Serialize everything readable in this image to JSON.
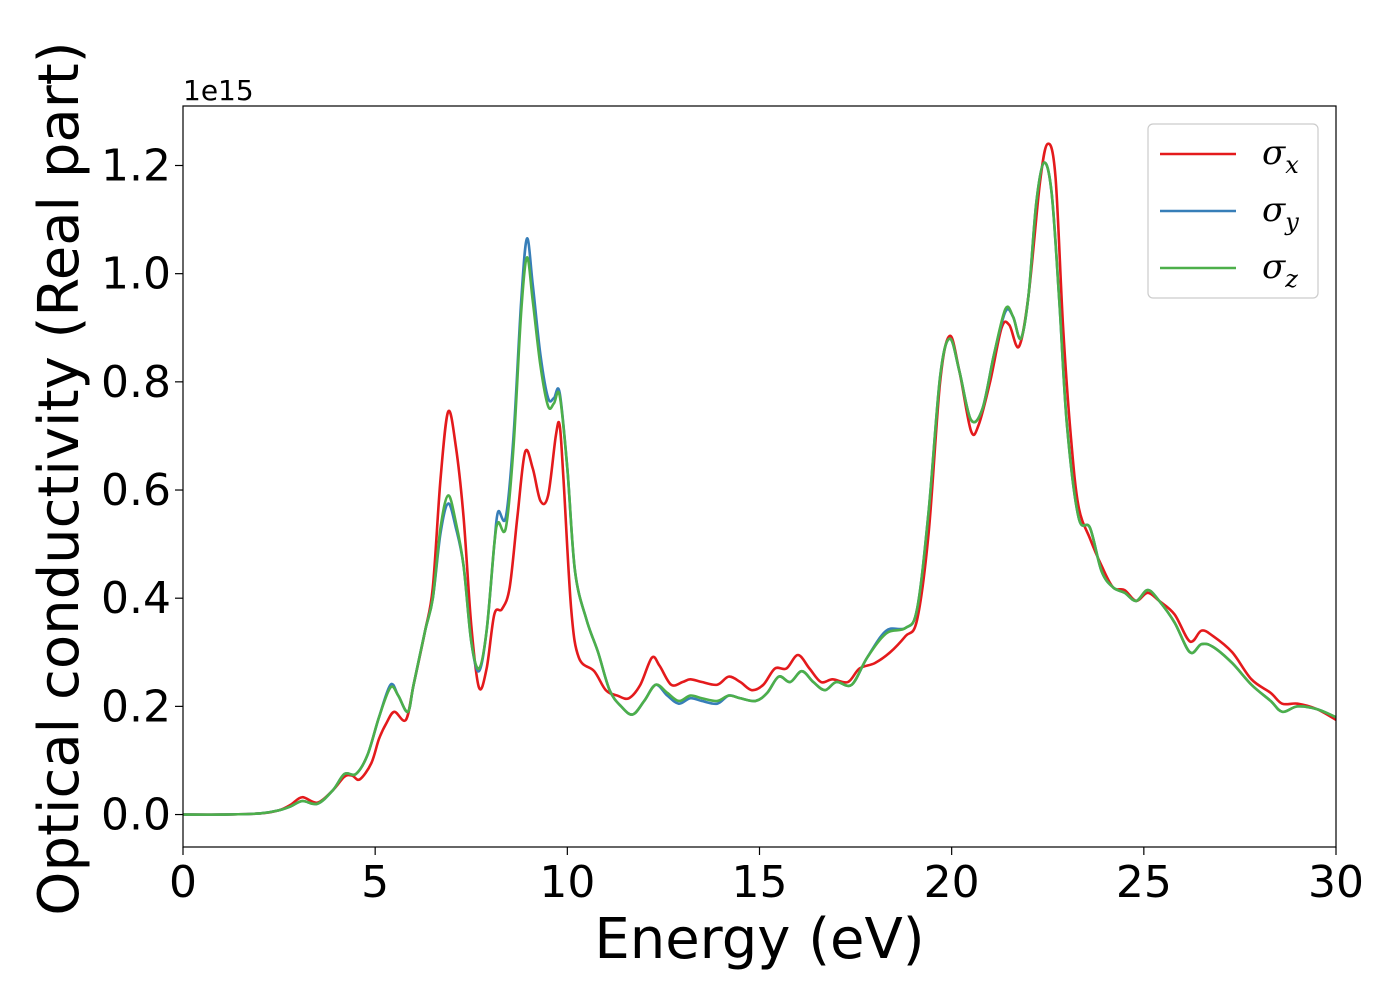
{
  "chart_data": {
    "type": "line",
    "title": "",
    "xlabel": "Energy (eV)",
    "ylabel": "Optical conductivity (Real part)",
    "offset_text": "1e15",
    "xlim": [
      0,
      30
    ],
    "ylim": [
      -0.06,
      1.31
    ],
    "x_ticks": [
      0,
      5,
      10,
      15,
      20,
      25,
      30
    ],
    "x_tick_labels": [
      "0",
      "5",
      "10",
      "15",
      "20",
      "25",
      "30"
    ],
    "y_ticks": [
      0.0,
      0.2,
      0.4,
      0.6,
      0.8,
      1.0,
      1.2
    ],
    "y_tick_labels": [
      "0.0",
      "0.2",
      "0.4",
      "0.6",
      "0.8",
      "1.0",
      "1.2"
    ],
    "grid": false,
    "legend_position": "top-right",
    "series": [
      {
        "name": "σx",
        "legend_symbol": "σ",
        "legend_sub": "x",
        "color": "#e41a1c",
        "points": [
          [
            0,
            0
          ],
          [
            1,
            0
          ],
          [
            2,
            0.002
          ],
          [
            2.5,
            0.008
          ],
          [
            2.8,
            0.018
          ],
          [
            3.1,
            0.032
          ],
          [
            3.5,
            0.022
          ],
          [
            3.9,
            0.045
          ],
          [
            4.2,
            0.07
          ],
          [
            4.4,
            0.072
          ],
          [
            4.6,
            0.065
          ],
          [
            4.9,
            0.095
          ],
          [
            5.1,
            0.14
          ],
          [
            5.3,
            0.17
          ],
          [
            5.5,
            0.19
          ],
          [
            5.8,
            0.175
          ],
          [
            6.0,
            0.24
          ],
          [
            6.3,
            0.34
          ],
          [
            6.5,
            0.42
          ],
          [
            6.7,
            0.62
          ],
          [
            6.9,
            0.745
          ],
          [
            7.1,
            0.68
          ],
          [
            7.3,
            0.55
          ],
          [
            7.5,
            0.35
          ],
          [
            7.7,
            0.235
          ],
          [
            7.9,
            0.27
          ],
          [
            8.1,
            0.37
          ],
          [
            8.3,
            0.38
          ],
          [
            8.5,
            0.42
          ],
          [
            8.7,
            0.55
          ],
          [
            8.9,
            0.67
          ],
          [
            9.1,
            0.64
          ],
          [
            9.3,
            0.58
          ],
          [
            9.5,
            0.59
          ],
          [
            9.7,
            0.7
          ],
          [
            9.8,
            0.72
          ],
          [
            9.9,
            0.62
          ],
          [
            10.1,
            0.38
          ],
          [
            10.3,
            0.29
          ],
          [
            10.7,
            0.265
          ],
          [
            11.0,
            0.23
          ],
          [
            11.3,
            0.22
          ],
          [
            11.6,
            0.215
          ],
          [
            11.9,
            0.24
          ],
          [
            12.2,
            0.29
          ],
          [
            12.4,
            0.275
          ],
          [
            12.7,
            0.24
          ],
          [
            13.0,
            0.245
          ],
          [
            13.2,
            0.25
          ],
          [
            13.5,
            0.245
          ],
          [
            13.9,
            0.24
          ],
          [
            14.2,
            0.255
          ],
          [
            14.5,
            0.245
          ],
          [
            14.8,
            0.23
          ],
          [
            15.1,
            0.24
          ],
          [
            15.4,
            0.27
          ],
          [
            15.7,
            0.27
          ],
          [
            16.0,
            0.295
          ],
          [
            16.3,
            0.27
          ],
          [
            16.6,
            0.245
          ],
          [
            16.9,
            0.25
          ],
          [
            17.3,
            0.245
          ],
          [
            17.6,
            0.27
          ],
          [
            18.0,
            0.28
          ],
          [
            18.4,
            0.3
          ],
          [
            18.8,
            0.33
          ],
          [
            19.1,
            0.36
          ],
          [
            19.4,
            0.52
          ],
          [
            19.7,
            0.8
          ],
          [
            19.95,
            0.885
          ],
          [
            20.2,
            0.82
          ],
          [
            20.5,
            0.71
          ],
          [
            20.7,
            0.72
          ],
          [
            21.0,
            0.8
          ],
          [
            21.3,
            0.9
          ],
          [
            21.5,
            0.905
          ],
          [
            21.75,
            0.865
          ],
          [
            22.0,
            0.96
          ],
          [
            22.3,
            1.17
          ],
          [
            22.5,
            1.24
          ],
          [
            22.7,
            1.18
          ],
          [
            22.9,
            0.9
          ],
          [
            23.1,
            0.7
          ],
          [
            23.3,
            0.57
          ],
          [
            23.6,
            0.51
          ],
          [
            23.9,
            0.46
          ],
          [
            24.2,
            0.42
          ],
          [
            24.5,
            0.415
          ],
          [
            24.8,
            0.395
          ],
          [
            25.1,
            0.41
          ],
          [
            25.4,
            0.395
          ],
          [
            25.8,
            0.37
          ],
          [
            26.2,
            0.32
          ],
          [
            26.5,
            0.34
          ],
          [
            26.8,
            0.33
          ],
          [
            27.3,
            0.3
          ],
          [
            27.8,
            0.25
          ],
          [
            28.3,
            0.225
          ],
          [
            28.6,
            0.205
          ],
          [
            29.0,
            0.205
          ],
          [
            29.5,
            0.195
          ],
          [
            30.0,
            0.175
          ]
        ]
      },
      {
        "name": "σy",
        "legend_symbol": "σ",
        "legend_sub": "y",
        "color": "#377eb8",
        "points": [
          [
            0,
            0
          ],
          [
            1,
            0
          ],
          [
            2,
            0.002
          ],
          [
            2.5,
            0.008
          ],
          [
            2.8,
            0.015
          ],
          [
            3.1,
            0.025
          ],
          [
            3.5,
            0.02
          ],
          [
            3.9,
            0.045
          ],
          [
            4.2,
            0.075
          ],
          [
            4.5,
            0.075
          ],
          [
            4.8,
            0.11
          ],
          [
            5.1,
            0.18
          ],
          [
            5.4,
            0.24
          ],
          [
            5.6,
            0.22
          ],
          [
            5.85,
            0.19
          ],
          [
            6.0,
            0.24
          ],
          [
            6.3,
            0.34
          ],
          [
            6.5,
            0.4
          ],
          [
            6.7,
            0.52
          ],
          [
            6.9,
            0.575
          ],
          [
            7.1,
            0.53
          ],
          [
            7.3,
            0.46
          ],
          [
            7.5,
            0.32
          ],
          [
            7.7,
            0.265
          ],
          [
            7.9,
            0.34
          ],
          [
            8.1,
            0.5
          ],
          [
            8.2,
            0.56
          ],
          [
            8.4,
            0.55
          ],
          [
            8.6,
            0.7
          ],
          [
            8.8,
            0.95
          ],
          [
            8.95,
            1.065
          ],
          [
            9.1,
            0.98
          ],
          [
            9.3,
            0.85
          ],
          [
            9.5,
            0.77
          ],
          [
            9.65,
            0.77
          ],
          [
            9.8,
            0.78
          ],
          [
            10.0,
            0.64
          ],
          [
            10.2,
            0.45
          ],
          [
            10.5,
            0.36
          ],
          [
            10.8,
            0.3
          ],
          [
            11.1,
            0.23
          ],
          [
            11.4,
            0.2
          ],
          [
            11.7,
            0.185
          ],
          [
            12.0,
            0.21
          ],
          [
            12.3,
            0.24
          ],
          [
            12.6,
            0.22
          ],
          [
            12.9,
            0.205
          ],
          [
            13.2,
            0.215
          ],
          [
            13.5,
            0.21
          ],
          [
            13.9,
            0.205
          ],
          [
            14.2,
            0.22
          ],
          [
            14.5,
            0.215
          ],
          [
            14.9,
            0.21
          ],
          [
            15.2,
            0.225
          ],
          [
            15.5,
            0.255
          ],
          [
            15.8,
            0.245
          ],
          [
            16.1,
            0.265
          ],
          [
            16.4,
            0.245
          ],
          [
            16.7,
            0.23
          ],
          [
            17.0,
            0.245
          ],
          [
            17.4,
            0.24
          ],
          [
            17.8,
            0.29
          ],
          [
            18.3,
            0.34
          ],
          [
            18.8,
            0.345
          ],
          [
            19.1,
            0.38
          ],
          [
            19.4,
            0.56
          ],
          [
            19.7,
            0.81
          ],
          [
            19.95,
            0.88
          ],
          [
            20.2,
            0.82
          ],
          [
            20.5,
            0.73
          ],
          [
            20.8,
            0.75
          ],
          [
            21.1,
            0.85
          ],
          [
            21.4,
            0.93
          ],
          [
            21.6,
            0.92
          ],
          [
            21.8,
            0.88
          ],
          [
            22.0,
            0.96
          ],
          [
            22.2,
            1.13
          ],
          [
            22.4,
            1.205
          ],
          [
            22.6,
            1.15
          ],
          [
            22.8,
            0.95
          ],
          [
            23.0,
            0.72
          ],
          [
            23.3,
            0.55
          ],
          [
            23.6,
            0.53
          ],
          [
            23.9,
            0.45
          ],
          [
            24.2,
            0.42
          ],
          [
            24.5,
            0.41
          ],
          [
            24.8,
            0.395
          ],
          [
            25.1,
            0.415
          ],
          [
            25.4,
            0.395
          ],
          [
            25.8,
            0.355
          ],
          [
            26.2,
            0.3
          ],
          [
            26.5,
            0.315
          ],
          [
            26.8,
            0.31
          ],
          [
            27.3,
            0.28
          ],
          [
            27.8,
            0.24
          ],
          [
            28.3,
            0.21
          ],
          [
            28.6,
            0.19
          ],
          [
            29.0,
            0.2
          ],
          [
            29.5,
            0.195
          ],
          [
            30.0,
            0.18
          ]
        ]
      },
      {
        "name": "σz",
        "legend_symbol": "σ",
        "legend_sub": "z",
        "color": "#4daf4a",
        "points": [
          [
            0,
            0
          ],
          [
            1,
            0
          ],
          [
            2,
            0.002
          ],
          [
            2.5,
            0.008
          ],
          [
            2.8,
            0.015
          ],
          [
            3.1,
            0.025
          ],
          [
            3.5,
            0.02
          ],
          [
            3.9,
            0.045
          ],
          [
            4.2,
            0.075
          ],
          [
            4.5,
            0.075
          ],
          [
            4.8,
            0.11
          ],
          [
            5.1,
            0.18
          ],
          [
            5.4,
            0.235
          ],
          [
            5.6,
            0.22
          ],
          [
            5.85,
            0.19
          ],
          [
            6.0,
            0.24
          ],
          [
            6.3,
            0.34
          ],
          [
            6.5,
            0.4
          ],
          [
            6.7,
            0.53
          ],
          [
            6.9,
            0.59
          ],
          [
            7.1,
            0.54
          ],
          [
            7.3,
            0.46
          ],
          [
            7.5,
            0.32
          ],
          [
            7.7,
            0.27
          ],
          [
            7.9,
            0.34
          ],
          [
            8.1,
            0.5
          ],
          [
            8.2,
            0.54
          ],
          [
            8.4,
            0.53
          ],
          [
            8.6,
            0.68
          ],
          [
            8.8,
            0.93
          ],
          [
            8.95,
            1.03
          ],
          [
            9.1,
            0.95
          ],
          [
            9.3,
            0.83
          ],
          [
            9.5,
            0.755
          ],
          [
            9.65,
            0.76
          ],
          [
            9.8,
            0.775
          ],
          [
            10.0,
            0.64
          ],
          [
            10.2,
            0.45
          ],
          [
            10.5,
            0.36
          ],
          [
            10.8,
            0.3
          ],
          [
            11.1,
            0.23
          ],
          [
            11.4,
            0.2
          ],
          [
            11.7,
            0.185
          ],
          [
            12.0,
            0.21
          ],
          [
            12.3,
            0.24
          ],
          [
            12.6,
            0.225
          ],
          [
            12.9,
            0.21
          ],
          [
            13.2,
            0.22
          ],
          [
            13.5,
            0.215
          ],
          [
            13.9,
            0.21
          ],
          [
            14.2,
            0.22
          ],
          [
            14.5,
            0.215
          ],
          [
            14.9,
            0.21
          ],
          [
            15.2,
            0.225
          ],
          [
            15.5,
            0.255
          ],
          [
            15.8,
            0.245
          ],
          [
            16.1,
            0.265
          ],
          [
            16.4,
            0.245
          ],
          [
            16.7,
            0.23
          ],
          [
            17.0,
            0.245
          ],
          [
            17.4,
            0.24
          ],
          [
            17.8,
            0.29
          ],
          [
            18.3,
            0.335
          ],
          [
            18.8,
            0.345
          ],
          [
            19.1,
            0.38
          ],
          [
            19.4,
            0.56
          ],
          [
            19.7,
            0.81
          ],
          [
            19.95,
            0.88
          ],
          [
            20.2,
            0.82
          ],
          [
            20.5,
            0.73
          ],
          [
            20.8,
            0.75
          ],
          [
            21.1,
            0.85
          ],
          [
            21.4,
            0.935
          ],
          [
            21.6,
            0.92
          ],
          [
            21.8,
            0.88
          ],
          [
            22.0,
            0.96
          ],
          [
            22.2,
            1.13
          ],
          [
            22.4,
            1.205
          ],
          [
            22.6,
            1.15
          ],
          [
            22.8,
            0.95
          ],
          [
            23.0,
            0.72
          ],
          [
            23.3,
            0.55
          ],
          [
            23.6,
            0.53
          ],
          [
            23.9,
            0.45
          ],
          [
            24.2,
            0.42
          ],
          [
            24.5,
            0.41
          ],
          [
            24.8,
            0.395
          ],
          [
            25.1,
            0.415
          ],
          [
            25.4,
            0.395
          ],
          [
            25.8,
            0.355
          ],
          [
            26.2,
            0.3
          ],
          [
            26.5,
            0.315
          ],
          [
            26.8,
            0.31
          ],
          [
            27.3,
            0.28
          ],
          [
            27.8,
            0.24
          ],
          [
            28.3,
            0.21
          ],
          [
            28.6,
            0.19
          ],
          [
            29.0,
            0.2
          ],
          [
            29.5,
            0.195
          ],
          [
            30.0,
            0.18
          ]
        ]
      }
    ]
  }
}
